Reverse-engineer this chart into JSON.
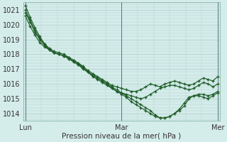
{
  "xlabel": "Pression niveau de la mer( hPa )",
  "ylim": [
    1013.5,
    1021.5
  ],
  "yticks": [
    1014,
    1015,
    1016,
    1017,
    1018,
    1019,
    1020,
    1021
  ],
  "xtick_labels": [
    "Lun",
    "Mar",
    "Mer"
  ],
  "xtick_positions": [
    0,
    0.5,
    1.0
  ],
  "background_color": "#d4ecea",
  "grid_color": "#b8d4d2",
  "line_color": "#1e5c28",
  "series": [
    [
      1021.3,
      1020.5,
      1019.8,
      1019.2,
      1018.7,
      1018.3,
      1018.1,
      1018.0,
      1017.9,
      1017.8,
      1017.6,
      1017.4,
      1017.2,
      1016.9,
      1016.7,
      1016.5,
      1016.3,
      1016.1,
      1015.9,
      1015.8,
      1015.7,
      1015.6,
      1015.5,
      1015.5,
      1015.6,
      1015.8,
      1016.0,
      1015.9,
      1015.8,
      1016.0,
      1016.1,
      1016.2,
      1016.1,
      1016.0,
      1015.9,
      1016.0,
      1016.2,
      1016.4,
      1016.3,
      1016.2,
      1016.5
    ],
    [
      1020.8,
      1020.2,
      1019.5,
      1019.0,
      1018.6,
      1018.3,
      1018.1,
      1018.0,
      1017.9,
      1017.7,
      1017.5,
      1017.3,
      1017.0,
      1016.8,
      1016.5,
      1016.3,
      1016.1,
      1015.9,
      1015.7,
      1015.5,
      1015.4,
      1015.3,
      1015.2,
      1015.1,
      1015.0,
      1015.1,
      1015.3,
      1015.5,
      1015.7,
      1015.8,
      1015.9,
      1015.9,
      1015.8,
      1015.7,
      1015.6,
      1015.7,
      1015.9,
      1016.1,
      1016.0,
      1015.8,
      1016.0
    ],
    [
      1021.0,
      1020.3,
      1019.6,
      1019.1,
      1018.7,
      1018.4,
      1018.2,
      1018.1,
      1018.0,
      1017.8,
      1017.6,
      1017.4,
      1017.1,
      1016.8,
      1016.6,
      1016.4,
      1016.2,
      1016.0,
      1015.7,
      1015.5,
      1015.3,
      1015.1,
      1014.8,
      1014.6,
      1014.4,
      1014.2,
      1014.0,
      1013.8,
      1013.7,
      1013.7,
      1013.8,
      1014.0,
      1014.2,
      1014.5,
      1015.0,
      1015.2,
      1015.3,
      1015.3,
      1015.2,
      1015.3,
      1015.5
    ],
    [
      1020.6,
      1019.9,
      1019.3,
      1018.8,
      1018.5,
      1018.3,
      1018.1,
      1018.0,
      1017.9,
      1017.7,
      1017.5,
      1017.3,
      1017.1,
      1016.8,
      1016.6,
      1016.4,
      1016.2,
      1016.0,
      1015.8,
      1015.6,
      1015.4,
      1015.2,
      1015.0,
      1014.8,
      1014.6,
      1014.4,
      1014.2,
      1013.9,
      1013.7,
      1013.7,
      1013.8,
      1014.0,
      1014.3,
      1014.7,
      1015.1,
      1015.2,
      1015.2,
      1015.1,
      1015.0,
      1015.2,
      1015.4
    ]
  ]
}
